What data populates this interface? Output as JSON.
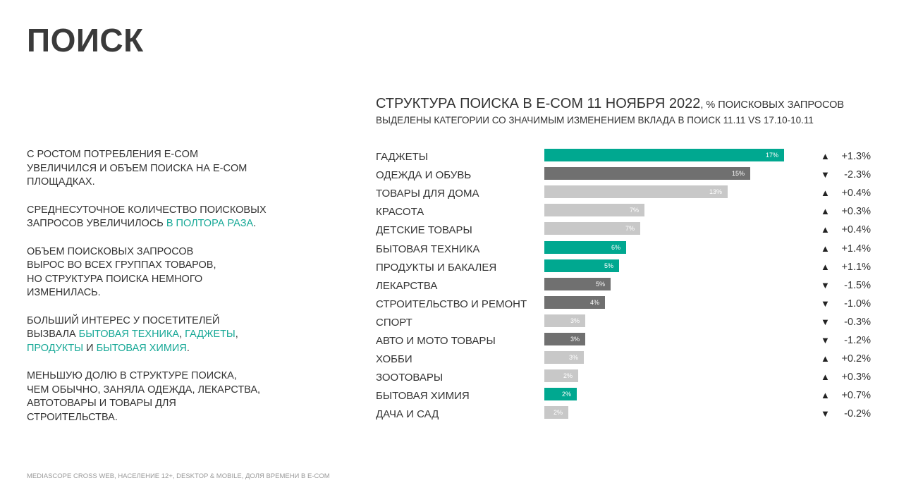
{
  "page_title": "ПОИСК",
  "left_text": {
    "p1": [
      "С РОСТОМ ПОТРЕБЛЕНИЯ E-COM",
      "УВЕЛИЧИЛСЯ И ОБЪЕМ ПОИСКА НА E-COM",
      "ПЛОЩАДКАХ."
    ],
    "p2_line1": "СРЕДНЕСУТОЧНОЕ КОЛИЧЕСТВО ПОИСКОВЫХ",
    "p2_line2_prefix": "ЗАПРОСОВ УВЕЛИЧИЛОСЬ ",
    "p2_line2_highlight": "В ПОЛТОРА РАЗА",
    "p2_line2_suffix": ".",
    "p3": [
      "ОБЪЕМ ПОИСКОВЫХ ЗАПРОСОВ",
      "ВЫРОС ВО ВСЕХ ГРУППАХ ТОВАРОВ,",
      "НО СТРУКТУРА ПОИСКА НЕМНОГО",
      "ИЗМЕНИЛАСЬ."
    ],
    "p4_line1": "БОЛЬШИЙ ИНТЕРЕС У ПОСЕТИТЕЛЕЙ",
    "p4_line2_prefix": "ВЫЗВАЛА ",
    "p4_hl1": "БЫТОВАЯ ТЕХНИКА",
    "p4_sep1": ", ",
    "p4_hl2": "ГАДЖЕТЫ",
    "p4_sep2": ",",
    "p4_hl3": "ПРОДУКТЫ",
    "p4_and": " И ",
    "p4_hl4": "БЫТОВАЯ ХИМИЯ",
    "p4_end": ".",
    "p5": [
      "МЕНЬШУЮ ДОЛЮ В СТРУКТУРЕ ПОИСКА,",
      "ЧЕМ ОБЫЧНО, ЗАНЯЛА ОДЕЖДА, ЛЕКАРСТВА,",
      "АВТОТОВАРЫ И ТОВАРЫ ДЛЯ",
      "СТРОИТЕЛЬСТВА."
    ]
  },
  "colors": {
    "accent": "#00a890",
    "decrease": "#707070",
    "neutral": "#c8c8c8"
  },
  "chart_data": {
    "type": "bar",
    "orientation": "horizontal",
    "title": "СТРУКТУРА ПОИСКА В E-COM 11 НОЯБРЯ 2022",
    "unit": ", % ПОИСКОВЫХ ЗАПРОСОВ",
    "subtitle": "ВЫДЕЛЕНЫ КАТЕГОРИИ СО ЗНАЧИМЫМ ИЗМЕНЕНИЕМ ВКЛАДА В ПОИСК 11.11 VS 17.10-10.11",
    "xlim": [
      0,
      17
    ],
    "categories": [
      "ГАДЖЕТЫ",
      "ОДЕЖДА И ОБУВЬ",
      "ТОВАРЫ ДЛЯ ДОМА",
      "КРАСОТА",
      "ДЕТСКИЕ ТОВАРЫ",
      "БЫТОВАЯ ТЕХНИКА",
      "ПРОДУКТЫ И БАКАЛЕЯ",
      "ЛЕКАРСТВА",
      "СТРОИТЕЛЬСТВО И РЕМОНТ",
      "СПОРТ",
      "АВТО И МОТО ТОВАРЫ",
      "ХОББИ",
      "ЗООТОВАРЫ",
      "БЫТОВАЯ ХИМИЯ",
      "ДАЧА И САД"
    ],
    "values": [
      17,
      15,
      13,
      7,
      7,
      6,
      5,
      5,
      4,
      3,
      3,
      3,
      2,
      2,
      2
    ],
    "value_labels": [
      "17%",
      "15%",
      "13%",
      "7%",
      "7%",
      "6%",
      "5%",
      "5%",
      "4%",
      "3%",
      "3%",
      "3%",
      "2%",
      "2%",
      "2%"
    ],
    "bar_lengths": [
      17.0,
      14.6,
      13.0,
      7.1,
      6.8,
      5.8,
      5.3,
      4.7,
      4.3,
      2.9,
      2.9,
      2.8,
      2.4,
      2.3,
      1.7
    ],
    "bar_status": [
      "accent",
      "decrease",
      "neutral",
      "neutral",
      "neutral",
      "accent",
      "accent",
      "decrease",
      "decrease",
      "neutral",
      "decrease",
      "neutral",
      "neutral",
      "accent",
      "neutral"
    ],
    "arrows": [
      "▲",
      "▼",
      "▲",
      "▲",
      "▲",
      "▲",
      "▲",
      "▼",
      "▼",
      "▼",
      "▼",
      "▲",
      "▲",
      "▲",
      "▼"
    ],
    "changes": [
      "+1.3%",
      "-2.3%",
      "+0.4%",
      "+0.3%",
      "+0.4%",
      "+1.4%",
      "+1.1%",
      "-1.5%",
      "-1.0%",
      "-0.3%",
      "-1.2%",
      "+0.2%",
      "+0.3%",
      "+0.7%",
      "-0.2%"
    ]
  },
  "source": "MEDIASCOPE CROSS WEB, НАСЕЛЕНИЕ 12+, DESKTOP & MOBILE, ДОЛЯ ВРЕМЕНИ В E-COM"
}
